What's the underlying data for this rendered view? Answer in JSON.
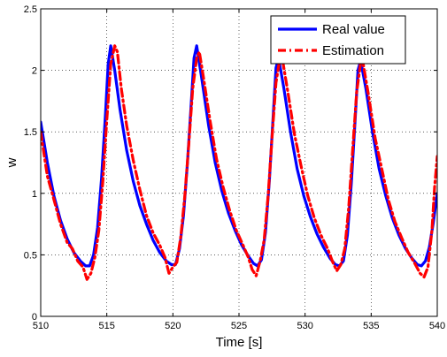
{
  "chart_data": {
    "type": "line",
    "xlabel": "Time [s]",
    "ylabel": "w",
    "xlim": [
      510,
      540
    ],
    "ylim": [
      0,
      2.5
    ],
    "xticks": [
      "510",
      "515",
      "520",
      "525",
      "530",
      "535",
      "540"
    ],
    "yticks": [
      "0",
      "0.5",
      "1",
      "1.5",
      "2",
      "2.5"
    ],
    "grid": true,
    "legend_position": "top-right",
    "series": [
      {
        "name": "Real value",
        "color": "#0000ff",
        "style": "solid",
        "x": [
          510.0,
          510.5,
          511.0,
          511.5,
          512.0,
          512.5,
          513.0,
          513.4,
          513.7,
          514.0,
          514.3,
          514.6,
          514.9,
          515.1,
          515.3,
          515.6,
          516.0,
          516.5,
          517.0,
          517.5,
          518.0,
          518.5,
          519.0,
          519.5,
          519.9,
          520.2,
          520.5,
          520.8,
          521.1,
          521.4,
          521.6,
          521.8,
          522.2,
          522.7,
          523.2,
          523.7,
          524.2,
          524.7,
          525.2,
          525.7,
          526.1,
          526.4,
          526.7,
          527.0,
          527.3,
          527.6,
          527.8,
          528.0,
          528.4,
          528.9,
          529.4,
          529.9,
          530.4,
          530.9,
          531.4,
          531.9,
          532.3,
          532.6,
          532.9,
          533.2,
          533.5,
          533.8,
          534.0,
          534.2,
          534.6,
          535.1,
          535.6,
          536.1,
          536.6,
          537.1,
          537.6,
          538.1,
          538.5,
          538.8,
          539.1,
          539.4,
          539.7,
          540.0
        ],
        "y": [
          1.58,
          1.25,
          0.98,
          0.78,
          0.63,
          0.52,
          0.45,
          0.41,
          0.41,
          0.5,
          0.72,
          1.12,
          1.65,
          2.05,
          2.2,
          2.0,
          1.68,
          1.35,
          1.1,
          0.9,
          0.75,
          0.62,
          0.52,
          0.45,
          0.42,
          0.42,
          0.55,
          0.82,
          1.25,
          1.75,
          2.1,
          2.2,
          1.92,
          1.55,
          1.25,
          1.02,
          0.84,
          0.7,
          0.58,
          0.49,
          0.43,
          0.41,
          0.46,
          0.68,
          1.1,
          1.65,
          2.02,
          2.1,
          1.85,
          1.5,
          1.2,
          0.98,
          0.81,
          0.67,
          0.56,
          0.47,
          0.42,
          0.41,
          0.45,
          0.66,
          1.08,
          1.62,
          2.0,
          2.08,
          1.85,
          1.5,
          1.2,
          0.98,
          0.8,
          0.66,
          0.55,
          0.47,
          0.42,
          0.41,
          0.45,
          0.56,
          0.76,
          1.0
        ]
      },
      {
        "name": "Estimation",
        "color": "#ff0000",
        "style": "dash-dot",
        "x": [
          510.0,
          510.5,
          511.0,
          511.5,
          512.0,
          512.4,
          512.8,
          513.2,
          513.5,
          513.8,
          514.1,
          514.4,
          514.7,
          515.0,
          515.3,
          515.6,
          515.8,
          516.1,
          516.5,
          517.0,
          517.5,
          518.0,
          518.5,
          519.0,
          519.4,
          519.7,
          520.0,
          520.3,
          520.6,
          520.9,
          521.2,
          521.5,
          521.8,
          522.0,
          522.3,
          522.8,
          523.3,
          523.8,
          524.3,
          524.8,
          525.3,
          525.7,
          526.0,
          526.3,
          526.6,
          526.9,
          527.2,
          527.5,
          527.8,
          528.1,
          528.3,
          528.7,
          529.2,
          529.7,
          530.2,
          530.7,
          531.2,
          531.7,
          532.1,
          532.4,
          532.7,
          533.0,
          533.3,
          533.6,
          533.9,
          534.2,
          534.4,
          534.8,
          535.3,
          535.8,
          536.3,
          536.8,
          537.3,
          537.8,
          538.3,
          538.7,
          539.0,
          539.3,
          539.6,
          539.8,
          540.0
        ],
        "y": [
          1.5,
          1.14,
          0.95,
          0.75,
          0.6,
          0.55,
          0.45,
          0.4,
          0.3,
          0.35,
          0.48,
          0.7,
          1.1,
          1.6,
          2.05,
          2.2,
          2.15,
          1.85,
          1.55,
          1.27,
          1.03,
          0.82,
          0.68,
          0.58,
          0.48,
          0.35,
          0.4,
          0.44,
          0.65,
          0.98,
          1.4,
          1.85,
          2.1,
          2.15,
          1.95,
          1.6,
          1.28,
          1.05,
          0.86,
          0.7,
          0.58,
          0.48,
          0.38,
          0.33,
          0.45,
          0.62,
          0.98,
          1.45,
          1.9,
          2.1,
          2.08,
          1.82,
          1.48,
          1.22,
          0.98,
          0.8,
          0.66,
          0.55,
          0.44,
          0.37,
          0.42,
          0.55,
          0.88,
          1.35,
          1.82,
          2.06,
          2.05,
          1.8,
          1.45,
          1.2,
          0.95,
          0.77,
          0.64,
          0.52,
          0.43,
          0.35,
          0.32,
          0.4,
          0.7,
          1.05,
          1.3
        ]
      }
    ]
  }
}
